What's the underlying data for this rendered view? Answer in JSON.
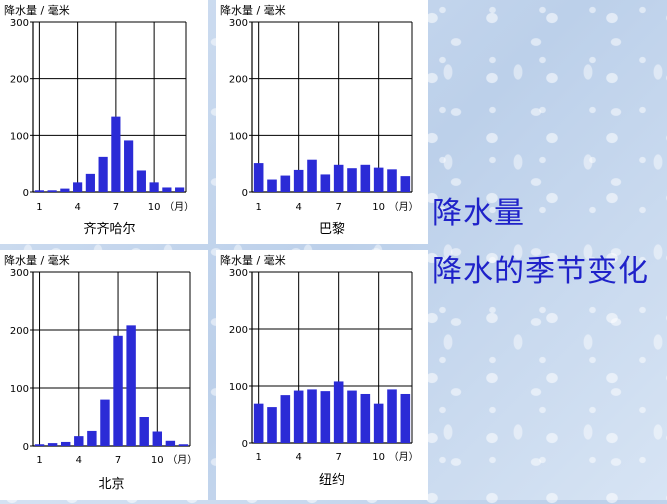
{
  "headings": {
    "line1": "降水量",
    "line2": "降水的季节变化"
  },
  "chart_data": [
    {
      "type": "bar",
      "ylabel": "降水量 / 毫米",
      "xlabel": "齐齐哈尔",
      "month_unit": "（月）",
      "ylim": [
        0,
        300
      ],
      "yticks": [
        0,
        100,
        200,
        300
      ],
      "xticks": [
        1,
        4,
        7,
        10
      ],
      "categories": [
        1,
        2,
        3,
        4,
        5,
        6,
        7,
        8,
        9,
        10,
        11,
        12
      ],
      "values": [
        3,
        3,
        6,
        17,
        32,
        62,
        133,
        91,
        38,
        17,
        8,
        8
      ],
      "color": "#2b2bd6"
    },
    {
      "type": "bar",
      "ylabel": "降水量 / 毫米",
      "xlabel": "巴黎",
      "month_unit": "（月）",
      "ylim": [
        0,
        300
      ],
      "yticks": [
        0,
        100,
        200,
        300
      ],
      "xticks": [
        1,
        4,
        7,
        10
      ],
      "categories": [
        1,
        2,
        3,
        4,
        5,
        6,
        7,
        8,
        9,
        10,
        11,
        12
      ],
      "values": [
        51,
        22,
        29,
        39,
        57,
        31,
        48,
        42,
        48,
        43,
        40,
        28
      ],
      "color": "#2b2bd6"
    },
    {
      "type": "bar",
      "ylabel": "降水量 / 毫米",
      "xlabel": "北京",
      "month_unit": "（月）",
      "ylim": [
        0,
        300
      ],
      "yticks": [
        0,
        100,
        200,
        300
      ],
      "xticks": [
        1,
        4,
        7,
        10
      ],
      "categories": [
        1,
        2,
        3,
        4,
        5,
        6,
        7,
        8,
        9,
        10,
        11,
        12
      ],
      "values": [
        3,
        5,
        7,
        17,
        26,
        80,
        190,
        208,
        50,
        25,
        9,
        3
      ],
      "color": "#2b2bd6"
    },
    {
      "type": "bar",
      "ylabel": "降水量 / 毫米",
      "xlabel": "纽约",
      "month_unit": "（月）",
      "ylim": [
        0,
        300
      ],
      "yticks": [
        0,
        100,
        200,
        300
      ],
      "xticks": [
        1,
        4,
        7,
        10
      ],
      "categories": [
        1,
        2,
        3,
        4,
        5,
        6,
        7,
        8,
        9,
        10,
        11,
        12
      ],
      "values": [
        69,
        63,
        84,
        92,
        94,
        91,
        108,
        92,
        86,
        69,
        94,
        86
      ],
      "color": "#2b2bd6"
    }
  ]
}
